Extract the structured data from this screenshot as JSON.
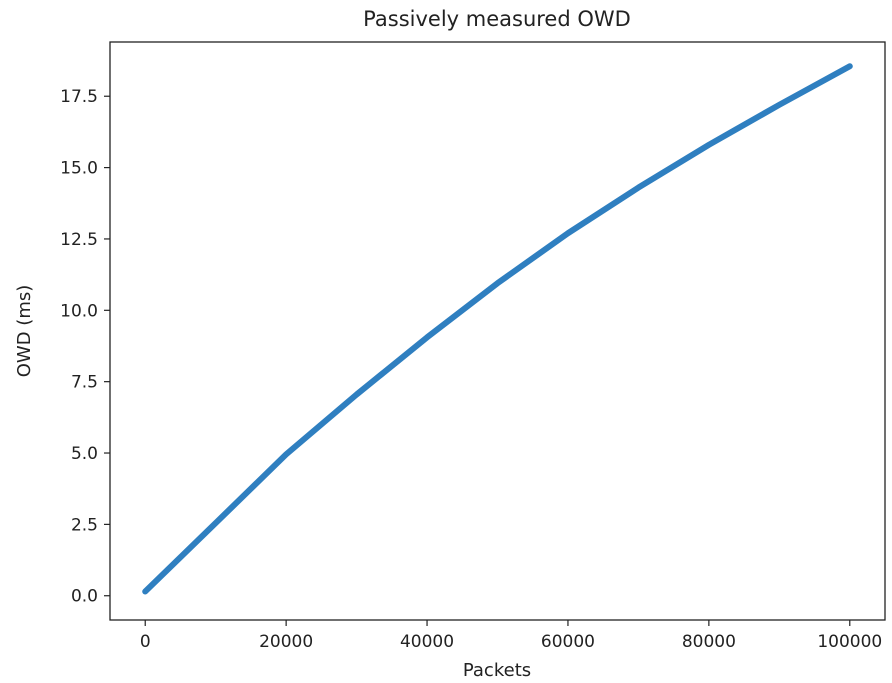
{
  "chart_data": {
    "type": "line",
    "title": "Passively measured OWD",
    "xlabel": "Packets",
    "ylabel": "OWD (ms)",
    "xlim": [
      -5000,
      105000
    ],
    "ylim": [
      -0.85,
      19.4
    ],
    "xticks": [
      0,
      20000,
      40000,
      60000,
      80000,
      100000
    ],
    "xtick_labels": [
      "0",
      "20000",
      "40000",
      "60000",
      "80000",
      "100000"
    ],
    "yticks": [
      0.0,
      2.5,
      5.0,
      7.5,
      10.0,
      12.5,
      15.0,
      17.5
    ],
    "ytick_labels": [
      "0.0",
      "2.5",
      "5.0",
      "7.5",
      "10.0",
      "12.5",
      "15.0",
      "17.5"
    ],
    "grid": false,
    "legend": "none",
    "series": [
      {
        "color": "#2f7fc0",
        "x": [
          0,
          10000,
          20000,
          30000,
          40000,
          50000,
          60000,
          70000,
          80000,
          90000,
          100000
        ],
        "y": [
          0.15,
          2.55,
          4.95,
          7.05,
          9.05,
          10.95,
          12.7,
          14.3,
          15.8,
          17.2,
          18.55
        ]
      }
    ]
  }
}
